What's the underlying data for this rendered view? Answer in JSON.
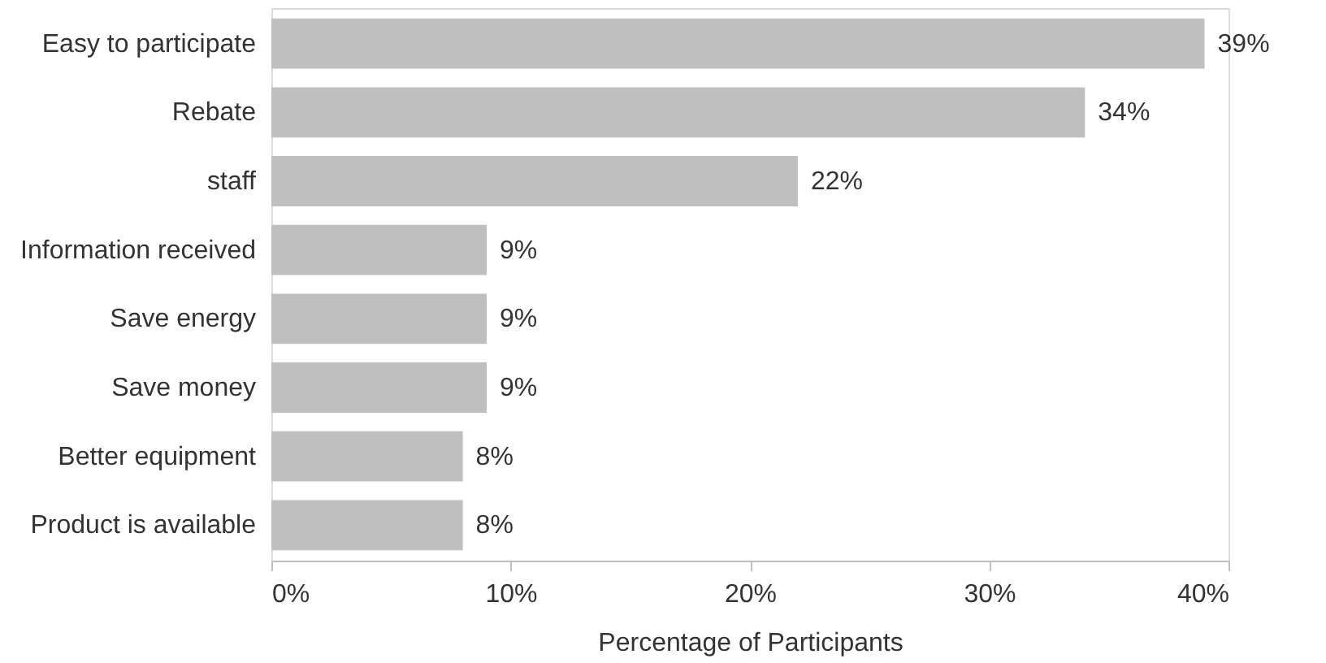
{
  "chart_data": {
    "type": "bar",
    "orientation": "horizontal",
    "xlabel": "Percentage of Participants",
    "categories": [
      "Easy to participate",
      "Rebate",
      "staff",
      "Information received",
      "Save energy",
      "Save money",
      "Better equipment",
      "Product is available"
    ],
    "values": [
      39,
      34,
      22,
      9,
      9,
      9,
      8,
      8
    ],
    "value_labels": [
      "39%",
      "34%",
      "22%",
      "9%",
      "9%",
      "9%",
      "8%",
      "8%"
    ],
    "color": "#bfbfbf",
    "xlim": [
      0,
      40
    ],
    "xticks": [
      {
        "value": 0,
        "label": "0%"
      },
      {
        "value": 10,
        "label": "10%"
      },
      {
        "value": 20,
        "label": "20%"
      },
      {
        "value": 30,
        "label": "30%"
      },
      {
        "value": 40,
        "label": "40%"
      }
    ],
    "grid": false
  }
}
